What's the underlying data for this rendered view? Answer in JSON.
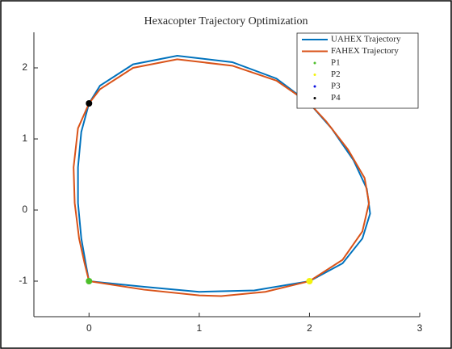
{
  "chart_data": {
    "type": "line",
    "title": "Hexacopter Trajectory Optimization",
    "xlim": [
      -0.5,
      3
    ],
    "ylim": [
      -1.5,
      2.5
    ],
    "xticks": [
      0,
      1,
      2,
      3
    ],
    "yticks": [
      -1,
      0,
      1,
      2
    ],
    "legend": "northeast",
    "series": [
      {
        "name": "UAHEX Trajectory",
        "type": "line",
        "color": "#0072bd",
        "x": [
          0,
          0.5,
          1,
          1.5,
          2,
          2.3,
          2.48,
          2.55,
          2.52,
          2.4,
          2.2,
          2,
          1.7,
          1.3,
          0.8,
          0.4,
          0.1,
          0,
          -0.07,
          -0.1,
          -0.1,
          -0.07,
          -0.03,
          0
        ],
        "values": [
          -1,
          -1.08,
          -1.15,
          -1.13,
          -1,
          -0.75,
          -0.4,
          -0.05,
          0.3,
          0.7,
          1.15,
          1.5,
          1.85,
          2.08,
          2.17,
          2.05,
          1.75,
          1.5,
          1.1,
          0.6,
          0.1,
          -0.4,
          -0.75,
          -1
        ]
      },
      {
        "name": "FAHEX Trajectory",
        "type": "line",
        "color": "#d95319",
        "x": [
          0,
          0.5,
          1,
          1.2,
          1.6,
          2,
          2.3,
          2.48,
          2.54,
          2.5,
          2.35,
          2.15,
          2,
          1.7,
          1.3,
          0.8,
          0.4,
          0.1,
          0,
          -0.1,
          -0.14,
          -0.13,
          -0.09,
          -0.04,
          0
        ],
        "values": [
          -1,
          -1.12,
          -1.2,
          -1.21,
          -1.15,
          -1,
          -0.7,
          -0.3,
          0.1,
          0.45,
          0.85,
          1.25,
          1.5,
          1.82,
          2.03,
          2.12,
          2,
          1.7,
          1.5,
          1.15,
          0.6,
          0.1,
          -0.4,
          -0.75,
          -1
        ]
      },
      {
        "name": "P1",
        "type": "scatter",
        "color": "#4dbf2a",
        "x": [
          0
        ],
        "values": [
          -1
        ]
      },
      {
        "name": "P2",
        "type": "scatter",
        "color": "#f2f20d",
        "x": [
          2
        ],
        "values": [
          -1
        ]
      },
      {
        "name": "P3",
        "type": "scatter",
        "color": "#0a10e0",
        "x": [
          2
        ],
        "values": [
          1.5
        ]
      },
      {
        "name": "P4",
        "type": "scatter",
        "color": "#000000",
        "x": [
          0
        ],
        "values": [
          1.5
        ]
      }
    ]
  }
}
